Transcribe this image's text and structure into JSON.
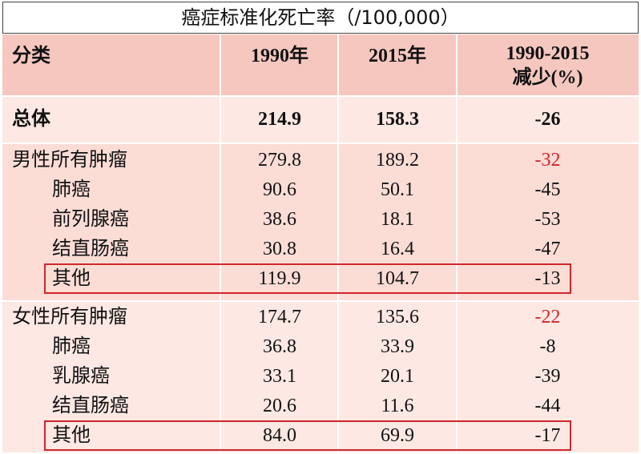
{
  "title": "癌症标准化死亡率（/100,000）",
  "header": {
    "category": "分类",
    "y1990": "1990年",
    "y2015": "2015年",
    "change": [
      "1990-2015",
      "减少(%)"
    ]
  },
  "total": [
    "总体",
    "214.9",
    "158.3",
    "-26"
  ],
  "groups": [
    {
      "rows": [
        [
          "男性所有肿瘤",
          "279.8",
          "189.2",
          "-32"
        ],
        [
          "肺癌",
          "90.6",
          "50.1",
          "-45"
        ],
        [
          "前列腺癌",
          "38.6",
          "18.1",
          "-53"
        ],
        [
          "结直肠癌",
          "30.8",
          "16.4",
          "-47"
        ],
        [
          "其他",
          "119.9",
          "104.7",
          "-13"
        ]
      ]
    },
    {
      "rows": [
        [
          "女性所有肿瘤",
          "174.7",
          "135.6",
          "-22"
        ],
        [
          "肺癌",
          "36.8",
          "33.9",
          "-8"
        ],
        [
          "乳腺癌",
          "33.1",
          "20.1",
          "-39"
        ],
        [
          "结直肠癌",
          "20.6",
          "11.6",
          "-44"
        ],
        [
          "其他",
          "84.0",
          "69.9",
          "-17"
        ]
      ]
    }
  ]
}
